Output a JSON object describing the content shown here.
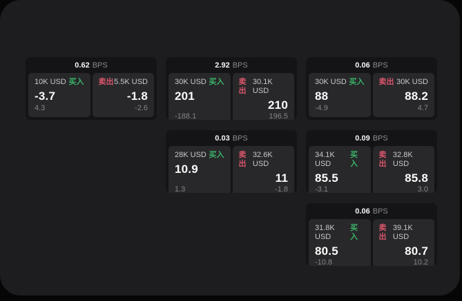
{
  "labels": {
    "bps": "BPS",
    "buy": "买入",
    "sell": "卖出"
  },
  "colors": {
    "buy_green": "#3ab368",
    "sell_red": "#d9556c",
    "panel_bg": "#1d1d1f",
    "card_bg": "#141416",
    "tile_bg": "#28282a"
  },
  "cards": [
    {
      "bps": "0.62",
      "buy": {
        "size": "10K USD",
        "price": "-3.7",
        "delta": "4.3"
      },
      "sell": {
        "size": "5.5K USD",
        "price": "-1.8",
        "delta": "-2.6"
      }
    },
    {
      "bps": "2.92",
      "buy": {
        "size": "30K USD",
        "price": "201",
        "delta": "-188.1"
      },
      "sell": {
        "size": "30.1K USD",
        "price": "210",
        "delta": "196.5"
      }
    },
    {
      "bps": "0.06",
      "buy": {
        "size": "30K USD",
        "price": "88",
        "delta": "-4.9"
      },
      "sell": {
        "size": "30K USD",
        "price": "88.2",
        "delta": "4.7"
      }
    },
    {
      "bps": "0.03",
      "buy": {
        "size": "28K USD",
        "price": "10.9",
        "delta": "1.3"
      },
      "sell": {
        "size": "32.6K USD",
        "price": "11",
        "delta": "-1.8"
      }
    },
    {
      "bps": "0.09",
      "buy": {
        "size": "34.1K USD",
        "price": "85.5",
        "delta": "-3.1"
      },
      "sell": {
        "size": "32.8K USD",
        "price": "85.8",
        "delta": "3.0"
      }
    },
    {
      "bps": "0.06",
      "buy": {
        "size": "31.8K USD",
        "price": "80.5",
        "delta": "-10.8"
      },
      "sell": {
        "size": "39.1K USD",
        "price": "80.7",
        "delta": "10.2"
      }
    }
  ]
}
